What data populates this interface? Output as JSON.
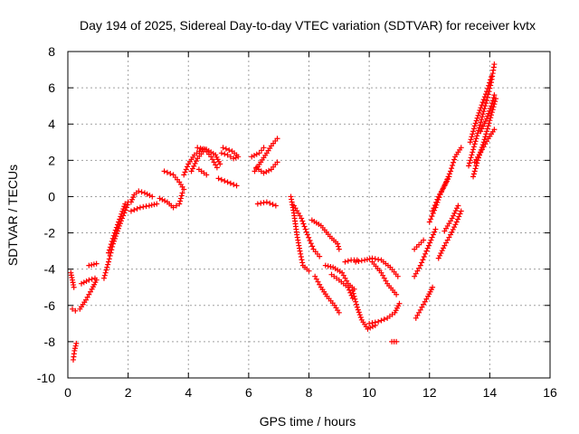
{
  "chart_data": {
    "type": "scatter",
    "title": "Day 194 of 2025, Sidereal Day-to-day VTEC variation (SDTVAR) for receiver kvtx",
    "xlabel": "GPS time / hours",
    "ylabel": "SDTVAR / TECUs",
    "xlim": [
      0,
      16
    ],
    "ylim": [
      -10,
      8
    ],
    "xticks": [
      "0",
      "2",
      "4",
      "6",
      "8",
      "10",
      "12",
      "14",
      "16"
    ],
    "yticks": [
      "-10",
      "-8",
      "-6",
      "-4",
      "-2",
      "0",
      "2",
      "4",
      "6",
      "8"
    ],
    "grid": true,
    "marker": "plus",
    "marker_color": "#ff0000",
    "tracks": [
      [
        [
          0.1,
          -4.2
        ],
        [
          0.15,
          -4.6
        ],
        [
          0.2,
          -5.0
        ]
      ],
      [
        [
          0.15,
          -6.2
        ],
        [
          0.25,
          -6.3
        ]
      ],
      [
        [
          0.18,
          -9.0
        ],
        [
          0.22,
          -8.5
        ],
        [
          0.28,
          -8.1
        ]
      ],
      [
        [
          0.4,
          -6.2
        ],
        [
          0.6,
          -5.7
        ],
        [
          0.8,
          -5.1
        ],
        [
          0.95,
          -4.6
        ]
      ],
      [
        [
          0.45,
          -4.8
        ],
        [
          0.7,
          -4.6
        ],
        [
          0.9,
          -4.5
        ]
      ],
      [
        [
          0.7,
          -3.8
        ],
        [
          0.95,
          -3.7
        ]
      ],
      [
        [
          1.2,
          -4.5
        ],
        [
          1.35,
          -3.6
        ],
        [
          1.5,
          -2.6
        ],
        [
          1.65,
          -1.9
        ],
        [
          1.8,
          -1.2
        ],
        [
          1.95,
          -0.6
        ],
        [
          2.0,
          -0.3
        ]
      ],
      [
        [
          1.35,
          -3.1
        ],
        [
          1.55,
          -2.0
        ],
        [
          1.75,
          -1.1
        ],
        [
          1.9,
          -0.4
        ]
      ],
      [
        [
          2.1,
          -0.3
        ],
        [
          2.2,
          0.1
        ],
        [
          2.35,
          0.3
        ],
        [
          2.55,
          0.2
        ],
        [
          2.8,
          0.0
        ]
      ],
      [
        [
          2.1,
          -0.8
        ],
        [
          2.4,
          -0.6
        ],
        [
          2.7,
          -0.5
        ],
        [
          2.95,
          -0.4
        ]
      ],
      [
        [
          3.05,
          -0.1
        ],
        [
          3.3,
          -0.3
        ],
        [
          3.5,
          -0.6
        ],
        [
          3.7,
          -0.4
        ],
        [
          3.8,
          0.2
        ]
      ],
      [
        [
          3.2,
          1.4
        ],
        [
          3.5,
          1.2
        ],
        [
          3.7,
          0.8
        ],
        [
          3.85,
          0.4
        ]
      ],
      [
        [
          3.85,
          1.2
        ],
        [
          4.0,
          1.8
        ],
        [
          4.2,
          2.3
        ],
        [
          4.45,
          2.6
        ]
      ],
      [
        [
          4.1,
          1.4
        ],
        [
          4.3,
          2.1
        ],
        [
          4.55,
          2.6
        ],
        [
          4.75,
          2.2
        ],
        [
          4.95,
          1.6
        ]
      ],
      [
        [
          4.3,
          2.7
        ],
        [
          4.6,
          2.6
        ],
        [
          4.9,
          2.3
        ],
        [
          5.05,
          1.8
        ]
      ],
      [
        [
          4.35,
          1.5
        ],
        [
          4.6,
          1.2
        ]
      ],
      [
        [
          5.1,
          2.4
        ],
        [
          5.3,
          2.3
        ],
        [
          5.5,
          2.1
        ],
        [
          5.65,
          2.2
        ]
      ],
      [
        [
          5.15,
          2.7
        ],
        [
          5.45,
          2.5
        ],
        [
          5.6,
          2.3
        ]
      ],
      [
        [
          5.0,
          1.0
        ],
        [
          5.3,
          0.8
        ],
        [
          5.6,
          0.6
        ]
      ],
      [
        [
          6.2,
          1.4
        ],
        [
          6.4,
          1.9
        ],
        [
          6.6,
          2.4
        ],
        [
          6.75,
          2.8
        ],
        [
          6.95,
          3.2
        ]
      ],
      [
        [
          6.25,
          1.6
        ],
        [
          6.5,
          1.3
        ],
        [
          6.75,
          1.5
        ],
        [
          6.95,
          1.9
        ]
      ],
      [
        [
          6.1,
          2.2
        ],
        [
          6.35,
          2.4
        ],
        [
          6.5,
          2.7
        ]
      ],
      [
        [
          6.3,
          -0.4
        ],
        [
          6.6,
          -0.3
        ],
        [
          6.9,
          -0.5
        ]
      ],
      [
        [
          7.4,
          0.0
        ],
        [
          7.5,
          -0.9
        ],
        [
          7.6,
          -2.1
        ],
        [
          7.7,
          -3.0
        ],
        [
          7.8,
          -3.8
        ],
        [
          8.0,
          -4.1
        ]
      ],
      [
        [
          7.5,
          -0.5
        ],
        [
          7.75,
          -1.2
        ],
        [
          7.95,
          -2.1
        ],
        [
          8.15,
          -2.9
        ],
        [
          8.35,
          -3.3
        ]
      ],
      [
        [
          8.1,
          -1.3
        ],
        [
          8.4,
          -1.6
        ],
        [
          8.7,
          -2.2
        ],
        [
          8.95,
          -2.6
        ],
        [
          9.0,
          -2.9
        ]
      ],
      [
        [
          8.2,
          -4.4
        ],
        [
          8.4,
          -5.0
        ],
        [
          8.6,
          -5.5
        ],
        [
          8.85,
          -6.0
        ],
        [
          9.0,
          -6.4
        ]
      ],
      [
        [
          8.55,
          -3.8
        ],
        [
          8.8,
          -3.9
        ],
        [
          9.1,
          -4.2
        ],
        [
          9.3,
          -4.8
        ],
        [
          9.5,
          -5.1
        ]
      ],
      [
        [
          8.75,
          -4.3
        ],
        [
          9.0,
          -4.6
        ],
        [
          9.3,
          -5.0
        ],
        [
          9.45,
          -5.6
        ]
      ],
      [
        [
          9.2,
          -3.6
        ],
        [
          9.4,
          -3.5
        ],
        [
          9.6,
          -3.5
        ]
      ],
      [
        [
          9.45,
          -5.2
        ],
        [
          9.6,
          -6.1
        ],
        [
          9.75,
          -6.8
        ],
        [
          9.95,
          -7.3
        ],
        [
          10.2,
          -7.1
        ]
      ],
      [
        [
          9.55,
          -3.6
        ],
        [
          9.85,
          -3.5
        ],
        [
          10.1,
          -3.4
        ],
        [
          10.4,
          -3.5
        ],
        [
          10.7,
          -3.9
        ],
        [
          10.95,
          -4.4
        ]
      ],
      [
        [
          10.1,
          -3.6
        ],
        [
          10.4,
          -4.2
        ],
        [
          10.6,
          -4.8
        ],
        [
          10.9,
          -5.4
        ]
      ],
      [
        [
          10.0,
          -7.0
        ],
        [
          10.3,
          -6.9
        ],
        [
          10.6,
          -6.7
        ],
        [
          10.85,
          -6.4
        ],
        [
          11.0,
          -5.9
        ]
      ],
      [
        [
          10.75,
          -8.0
        ],
        [
          10.9,
          -8.0
        ]
      ],
      [
        [
          11.5,
          -4.4
        ],
        [
          11.7,
          -3.8
        ],
        [
          11.9,
          -3.0
        ],
        [
          12.05,
          -2.4
        ],
        [
          12.2,
          -1.8
        ]
      ],
      [
        [
          11.55,
          -6.7
        ],
        [
          11.75,
          -6.1
        ],
        [
          11.95,
          -5.5
        ],
        [
          12.1,
          -5.0
        ]
      ],
      [
        [
          11.5,
          -2.9
        ],
        [
          11.8,
          -2.4
        ]
      ],
      [
        [
          12.0,
          -1.4
        ],
        [
          12.2,
          -0.6
        ],
        [
          12.35,
          0.1
        ],
        [
          12.55,
          0.8
        ],
        [
          12.7,
          1.4
        ],
        [
          12.85,
          2.2
        ],
        [
          13.05,
          2.7
        ]
      ],
      [
        [
          12.1,
          -0.8
        ],
        [
          12.3,
          0.0
        ],
        [
          12.5,
          0.6
        ],
        [
          12.65,
          1.1
        ]
      ],
      [
        [
          12.3,
          -3.4
        ],
        [
          12.5,
          -2.7
        ],
        [
          12.7,
          -2.1
        ],
        [
          12.9,
          -1.4
        ],
        [
          13.05,
          -0.8
        ]
      ],
      [
        [
          12.5,
          -1.9
        ],
        [
          12.75,
          -1.2
        ],
        [
          12.95,
          -0.5
        ]
      ],
      [
        [
          13.3,
          1.7
        ],
        [
          13.45,
          2.6
        ],
        [
          13.6,
          3.5
        ],
        [
          13.75,
          4.4
        ],
        [
          13.9,
          5.3
        ],
        [
          14.05,
          6.3
        ],
        [
          14.15,
          7.3
        ]
      ],
      [
        [
          13.35,
          3.0
        ],
        [
          13.5,
          3.9
        ],
        [
          13.7,
          4.9
        ],
        [
          13.9,
          5.8
        ],
        [
          14.05,
          6.6
        ]
      ],
      [
        [
          13.45,
          1.1
        ],
        [
          13.6,
          2.0
        ],
        [
          13.8,
          3.0
        ],
        [
          13.95,
          3.9
        ],
        [
          14.1,
          4.8
        ],
        [
          14.2,
          5.4
        ]
      ],
      [
        [
          13.5,
          1.9
        ],
        [
          13.75,
          2.6
        ],
        [
          13.95,
          3.2
        ],
        [
          14.15,
          3.7
        ]
      ],
      [
        [
          13.7,
          3.6
        ],
        [
          13.9,
          4.3
        ],
        [
          14.05,
          5.0
        ],
        [
          14.15,
          5.6
        ]
      ]
    ]
  }
}
